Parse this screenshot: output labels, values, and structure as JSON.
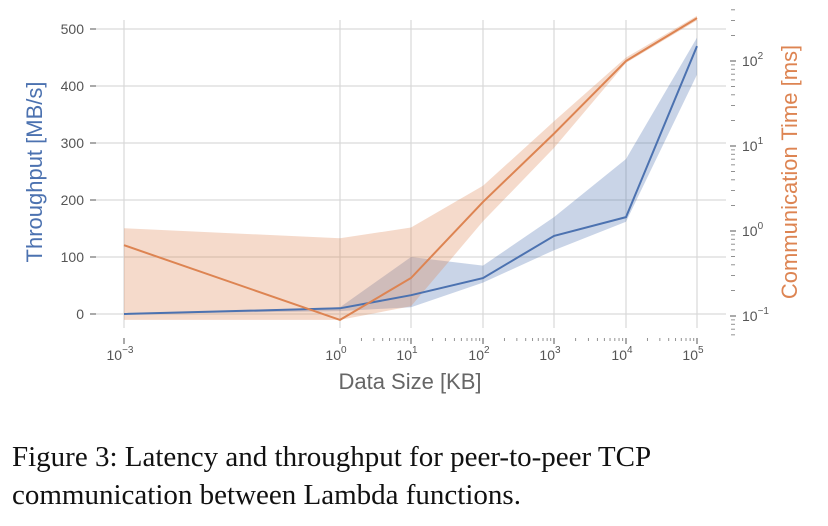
{
  "chart_data": {
    "type": "line",
    "xlabel": "Data Size [KB]",
    "ylabel_left": "Throughput [MB/s]",
    "ylabel_right": "Communication Time [ms]",
    "x_scale": "log",
    "x_ticks": [
      0.001,
      1,
      10,
      100,
      1000,
      10000,
      100000
    ],
    "x_tick_labels": [
      {
        "base": "10",
        "exp": "−3"
      },
      {
        "base": "10",
        "exp": "0"
      },
      {
        "base": "10",
        "exp": "1"
      },
      {
        "base": "10",
        "exp": "2"
      },
      {
        "base": "10",
        "exp": "3"
      },
      {
        "base": "10",
        "exp": "4"
      },
      {
        "base": "10",
        "exp": "5"
      }
    ],
    "left_axis": {
      "scale": "linear",
      "ylim": [
        -25,
        520
      ],
      "ticks": [
        "0",
        "100",
        "200",
        "300",
        "400",
        "500"
      ]
    },
    "right_axis": {
      "scale": "log",
      "ylim": [
        0.06,
        400
      ],
      "tick_labels": [
        {
          "base": "10",
          "exp": "−1",
          "value": 0.1
        },
        {
          "base": "10",
          "exp": "0",
          "value": 1
        },
        {
          "base": "10",
          "exp": "1",
          "value": 10
        },
        {
          "base": "10",
          "exp": "2",
          "value": 100
        }
      ]
    },
    "grid": true,
    "series": [
      {
        "axis": "left",
        "color": "#4c72b0",
        "x": [
          0.001,
          1,
          10,
          100,
          1000,
          10000,
          100000
        ],
        "y": [
          0,
          10,
          33,
          63,
          137,
          170,
          470
        ],
        "lower": [
          0,
          5,
          12,
          55,
          112,
          162,
          420
        ],
        "upper": [
          0,
          12,
          100,
          85,
          170,
          272,
          485
        ]
      },
      {
        "axis": "right",
        "color": "#dd8452",
        "x": [
          0.001,
          1,
          10,
          100,
          1000,
          10000,
          100000
        ],
        "y": [
          0.68,
          0.09,
          0.28,
          2.2,
          14,
          100,
          320
        ],
        "lower": [
          0.09,
          0.09,
          0.13,
          1.3,
          9.5,
          95,
          300
        ],
        "upper": [
          1.08,
          0.82,
          1.1,
          3.4,
          19.5,
          110,
          340
        ]
      }
    ]
  },
  "caption": "Figure 3: Latency and throughput for peer-to-peer TCP communication between Lambda functions."
}
